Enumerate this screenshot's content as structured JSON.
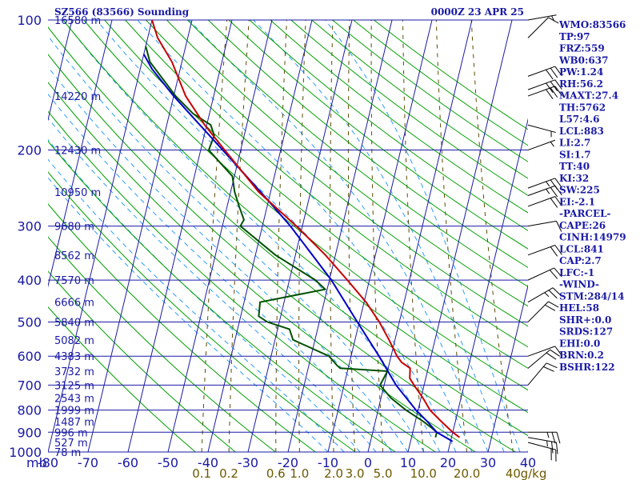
{
  "header": {
    "station": "SZ566 (83566) Sounding",
    "valid": "0000Z 23 APR 25"
  },
  "indices": [
    "WMO:83566",
    "TP:97",
    "FRZ:559",
    "WB0:637",
    "PW:1.24",
    "RH:56.2",
    "MAXT:27.4",
    "TH:5762",
    "L57:4.6",
    "LCL:883",
    "LI:2.7",
    "SI:1.7",
    "TT:40",
    "KI:32",
    "SW:225",
    "EI:-2.1",
    "-PARCEL-",
    "CAPE:26",
    "CINH:14979",
    "LCL:841",
    "CAP:2.7",
    "LFC:-1",
    "-WIND-",
    "STM:284/14",
    "HEL:58",
    "SHR+:0.0",
    "SRDS:127",
    "EHI:0.0",
    "BRN:0.2",
    "BSHR:122"
  ],
  "colors": {
    "grid": "#1a1aa6",
    "dry_adiabat": "#00a000",
    "moist_adiabat": "#2a9cff",
    "mixing_ratio": "#5a4a00",
    "temperature": "#c80000",
    "dewpoint": "#005000",
    "parcel": "#0000c8",
    "wind_barb": "#000000"
  },
  "chart_data": {
    "type": "line",
    "title": "SZ566 (83566) Sounding",
    "xlabel": "",
    "ylabel": "mb",
    "pressure_ticks": [
      100,
      200,
      300,
      400,
      500,
      600,
      700,
      800,
      900,
      1000
    ],
    "pressure_label": "mb",
    "temperature_ticks": [
      -80,
      -70,
      -60,
      -50,
      -40,
      -30,
      -20,
      -10,
      0,
      10,
      20,
      30,
      40
    ],
    "temperature_tick_labels": [
      "-80",
      "-70",
      "-60",
      "-50",
      "-40",
      "-30",
      "-20",
      "-10",
      "0",
      "10",
      "20",
      "30",
      "40"
    ],
    "xlim": [
      -80,
      40
    ],
    "ylim": [
      1000,
      100
    ],
    "yscale": "log",
    "height_labels": [
      {
        "p": 100,
        "label": "16580 m"
      },
      {
        "p": 150,
        "label": "14220 m"
      },
      {
        "p": 200,
        "label": "12430 m"
      },
      {
        "p": 250,
        "label": "10950 m"
      },
      {
        "p": 300,
        "label": "9680 m"
      },
      {
        "p": 350,
        "label": "8562 m"
      },
      {
        "p": 400,
        "label": "7570 m"
      },
      {
        "p": 450,
        "label": "6666 m"
      },
      {
        "p": 500,
        "label": "5840 m"
      },
      {
        "p": 550,
        "label": "5082 m"
      },
      {
        "p": 600,
        "label": "4383 m"
      },
      {
        "p": 650,
        "label": "3732 m"
      },
      {
        "p": 700,
        "label": "3125 m"
      },
      {
        "p": 750,
        "label": "2543 m"
      },
      {
        "p": 800,
        "label": "1999 m"
      },
      {
        "p": 850,
        "label": "1487 m"
      },
      {
        "p": 900,
        "label": "996 m"
      },
      {
        "p": 950,
        "label": "527 m"
      },
      {
        "p": 1000,
        "label": "78 m"
      }
    ],
    "mixing_ratio_labels": [
      "0.1",
      "0.2",
      "0.6",
      "1.0",
      "2.0",
      "3.0",
      "5.0",
      "10.0",
      "20.0",
      "40",
      "g/kg"
    ],
    "mixing_ratio_values": [
      0.1,
      0.2,
      0.6,
      1.0,
      2.0,
      3.0,
      5.0,
      10.0,
      20.0,
      40.0
    ],
    "series": [
      {
        "name": "temperature",
        "points": [
          {
            "p": 925,
            "t": 22.0
          },
          {
            "p": 900,
            "t": 20.0
          },
          {
            "p": 850,
            "t": 16.5
          },
          {
            "p": 800,
            "t": 13.0
          },
          {
            "p": 750,
            "t": 10.5
          },
          {
            "p": 700,
            "t": 7.5
          },
          {
            "p": 675,
            "t": 6.0
          },
          {
            "p": 640,
            "t": 5.5
          },
          {
            "p": 620,
            "t": 3.0
          },
          {
            "p": 600,
            "t": 1.5
          },
          {
            "p": 550,
            "t": -1.5
          },
          {
            "p": 500,
            "t": -5.0
          },
          {
            "p": 450,
            "t": -9.5
          },
          {
            "p": 400,
            "t": -15.5
          },
          {
            "p": 350,
            "t": -22.5
          },
          {
            "p": 300,
            "t": -31.5
          },
          {
            "p": 250,
            "t": -43.0
          },
          {
            "p": 200,
            "t": -54.0
          },
          {
            "p": 175,
            "t": -60.5
          },
          {
            "p": 150,
            "t": -67.0
          },
          {
            "p": 125,
            "t": -72.5
          },
          {
            "p": 110,
            "t": -77.5
          },
          {
            "p": 100,
            "t": -80.0
          }
        ]
      },
      {
        "name": "dewpoint",
        "points": [
          {
            "p": 925,
            "t": 16.0
          },
          {
            "p": 900,
            "t": 16.0
          },
          {
            "p": 880,
            "t": 14.5
          },
          {
            "p": 850,
            "t": 12.0
          },
          {
            "p": 800,
            "t": 7.0
          },
          {
            "p": 750,
            "t": 2.5
          },
          {
            "p": 700,
            "t": -1.0
          },
          {
            "p": 650,
            "t": 0.0
          },
          {
            "p": 640,
            "t": -12.0
          },
          {
            "p": 630,
            "t": -13.0
          },
          {
            "p": 600,
            "t": -15.5
          },
          {
            "p": 550,
            "t": -25.5
          },
          {
            "p": 520,
            "t": -27.0
          },
          {
            "p": 500,
            "t": -33.0
          },
          {
            "p": 485,
            "t": -35.5
          },
          {
            "p": 450,
            "t": -36.0
          },
          {
            "p": 420,
            "t": -20.5
          },
          {
            "p": 400,
            "t": -23.5
          },
          {
            "p": 350,
            "t": -35.0
          },
          {
            "p": 300,
            "t": -45.5
          },
          {
            "p": 290,
            "t": -45.0
          },
          {
            "p": 270,
            "t": -47.0
          },
          {
            "p": 250,
            "t": -49.0
          },
          {
            "p": 230,
            "t": -50.5
          },
          {
            "p": 200,
            "t": -58.0
          },
          {
            "p": 185,
            "t": -57.5
          },
          {
            "p": 175,
            "t": -59.0
          },
          {
            "p": 165,
            "t": -64.0
          },
          {
            "p": 150,
            "t": -69.5
          },
          {
            "p": 125,
            "t": -78.0
          },
          {
            "p": 115,
            "t": -80.0
          }
        ]
      },
      {
        "name": "parcel",
        "points": [
          {
            "p": 945,
            "t": 20.5
          },
          {
            "p": 900,
            "t": 16.0
          },
          {
            "p": 850,
            "t": 13.0
          },
          {
            "p": 800,
            "t": 9.5
          },
          {
            "p": 700,
            "t": 3.0
          },
          {
            "p": 600,
            "t": -3.0
          },
          {
            "p": 500,
            "t": -10.5
          },
          {
            "p": 400,
            "t": -19.5
          },
          {
            "p": 300,
            "t": -33.0
          },
          {
            "p": 250,
            "t": -42.5
          },
          {
            "p": 200,
            "t": -54.5
          },
          {
            "p": 150,
            "t": -70.0
          },
          {
            "p": 130,
            "t": -77.0
          },
          {
            "p": 120,
            "t": -80.0
          }
        ]
      }
    ],
    "wind_barbs": [
      {
        "p": 100,
        "dir": 260,
        "spd": 5
      },
      {
        "p": 110,
        "dir": 225,
        "spd": 10
      },
      {
        "p": 135,
        "dir": 250,
        "spd": 30
      },
      {
        "p": 145,
        "dir": 250,
        "spd": 30
      },
      {
        "p": 150,
        "dir": 250,
        "spd": 30
      },
      {
        "p": 175,
        "dir": 285,
        "spd": 5
      },
      {
        "p": 200,
        "dir": 250,
        "spd": 5
      },
      {
        "p": 245,
        "dir": 250,
        "spd": 25
      },
      {
        "p": 255,
        "dir": 250,
        "spd": 25
      },
      {
        "p": 270,
        "dir": 250,
        "spd": 20
      },
      {
        "p": 300,
        "dir": 260,
        "spd": 10
      },
      {
        "p": 350,
        "dir": 250,
        "spd": 20
      },
      {
        "p": 400,
        "dir": 245,
        "spd": 20
      },
      {
        "p": 450,
        "dir": 240,
        "spd": 25
      },
      {
        "p": 500,
        "dir": 225,
        "spd": 20
      },
      {
        "p": 600,
        "dir": 250,
        "spd": 10
      },
      {
        "p": 640,
        "dir": 230,
        "spd": 20
      },
      {
        "p": 700,
        "dir": 220,
        "spd": 20
      },
      {
        "p": 900,
        "dir": 270,
        "spd": 25
      },
      {
        "p": 925,
        "dir": 280,
        "spd": 25
      },
      {
        "p": 950,
        "dir": 285,
        "spd": 20
      }
    ]
  }
}
